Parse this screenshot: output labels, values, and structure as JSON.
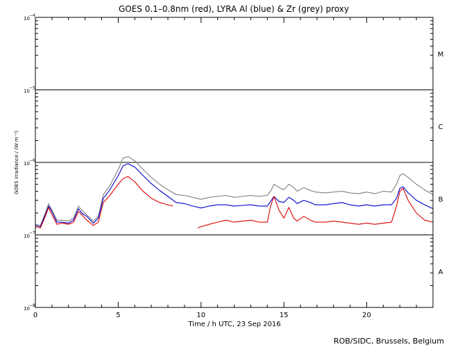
{
  "chart_data": {
    "type": "line",
    "title": "GOES 0.1–0.8nm (red), LYRA Al (blue) & Zr (grey) proxy",
    "xlabel": "Time / h UTC, 23 Sep 2016",
    "ylabel": "GOES irradiance / (W m⁻²)",
    "xlim": [
      0,
      24
    ],
    "ylim_log10": [
      -8,
      -4
    ],
    "x_ticks": [
      0,
      5,
      10,
      15,
      20
    ],
    "x_tick_labels": [
      "0",
      "5",
      "10",
      "15",
      "20"
    ],
    "y_ticks_log10": [
      -8,
      -7,
      -6,
      -5,
      -4
    ],
    "y_tick_labels": [
      {
        "base": "10",
        "exp": "−8"
      },
      {
        "base": "10",
        "exp": "−7"
      },
      {
        "base": "10",
        "exp": "−6"
      },
      {
        "base": "10",
        "exp": "−5"
      },
      {
        "base": "10",
        "exp": "−4"
      }
    ],
    "flare_class_lines_log10": [
      -7,
      -6,
      -5
    ],
    "flare_classes": [
      {
        "label": "A",
        "log10": -7.5
      },
      {
        "label": "B",
        "log10": -6.5
      },
      {
        "label": "C",
        "log10": -5.5
      },
      {
        "label": "M",
        "log10": -4.5
      }
    ],
    "series": [
      {
        "name": "LYRA Zr proxy",
        "color": "#808080",
        "x": [
          0,
          0.3,
          0.6,
          0.8,
          1.0,
          1.3,
          1.6,
          2.0,
          2.3,
          2.6,
          2.8,
          3.1,
          3.5,
          3.8,
          4.1,
          4.5,
          5.0,
          5.3,
          5.6,
          6.0,
          6.5,
          7.0,
          7.5,
          8.0,
          8.5,
          9.0,
          9.5,
          10.0,
          10.5,
          11.0,
          11.5,
          12.0,
          12.5,
          13.0,
          13.5,
          14.0,
          14.2,
          14.4,
          14.7,
          15.0,
          15.3,
          15.6,
          15.8,
          16.2,
          16.6,
          16.9,
          17.5,
          18.0,
          18.5,
          19.0,
          19.5,
          20.0,
          20.5,
          21.0,
          21.5,
          21.8,
          22.0,
          22.2,
          22.5,
          23.0,
          23.5,
          24.0
        ],
        "y": [
          1.4e-07,
          1.35e-07,
          2e-07,
          2.7e-07,
          2.2e-07,
          1.6e-07,
          1.6e-07,
          1.55e-07,
          1.7e-07,
          2.5e-07,
          2.2e-07,
          1.9e-07,
          1.55e-07,
          1.8e-07,
          3.6e-07,
          4.8e-07,
          8e-07,
          1.15e-06,
          1.2e-06,
          1.05e-06,
          8e-07,
          6.2e-07,
          5e-07,
          4.2e-07,
          3.6e-07,
          3.5e-07,
          3.3e-07,
          3.1e-07,
          3.3e-07,
          3.4e-07,
          3.5e-07,
          3.3e-07,
          3.4e-07,
          3.5e-07,
          3.4e-07,
          3.5e-07,
          4e-07,
          5e-07,
          4.5e-07,
          4.2e-07,
          5e-07,
          4.5e-07,
          4e-07,
          4.5e-07,
          4.1e-07,
          3.9e-07,
          3.8e-07,
          3.9e-07,
          4e-07,
          3.8e-07,
          3.7e-07,
          3.9e-07,
          3.7e-07,
          4e-07,
          3.9e-07,
          5e-07,
          6.6e-07,
          7e-07,
          6.2e-07,
          5e-07,
          4.2e-07,
          3.6e-07
        ]
      },
      {
        "name": "LYRA Al proxy",
        "color": "#0000cc",
        "x": [
          0,
          0.3,
          0.6,
          0.8,
          1.0,
          1.3,
          1.6,
          2.0,
          2.3,
          2.6,
          2.8,
          3.1,
          3.5,
          3.8,
          4.1,
          4.5,
          5.0,
          5.3,
          5.6,
          6.0,
          6.5,
          7.0,
          7.5,
          8.0,
          8.5,
          9.0,
          9.5,
          10.0,
          10.5,
          11.0,
          11.5,
          12.0,
          12.5,
          13.0,
          13.5,
          14.0,
          14.2,
          14.4,
          14.7,
          15.0,
          15.3,
          15.6,
          15.8,
          16.2,
          16.6,
          16.9,
          17.5,
          18.0,
          18.5,
          19.0,
          19.5,
          20.0,
          20.5,
          21.0,
          21.5,
          21.8,
          22.0,
          22.2,
          22.5,
          23.0,
          23.5,
          24.0
        ],
        "y": [
          1.35e-07,
          1.3e-07,
          1.9e-07,
          2.5e-07,
          2.1e-07,
          1.5e-07,
          1.5e-07,
          1.45e-07,
          1.6e-07,
          2.3e-07,
          2e-07,
          1.8e-07,
          1.45e-07,
          1.7e-07,
          3.2e-07,
          4.2e-07,
          6.6e-07,
          9e-07,
          9.6e-07,
          8.6e-07,
          6.6e-07,
          5.1e-07,
          4.1e-07,
          3.4e-07,
          2.8e-07,
          2.7e-07,
          2.5e-07,
          2.35e-07,
          2.5e-07,
          2.6e-07,
          2.6e-07,
          2.5e-07,
          2.55e-07,
          2.6e-07,
          2.5e-07,
          2.5e-07,
          2.9e-07,
          3.4e-07,
          2.9e-07,
          2.8e-07,
          3.3e-07,
          3e-07,
          2.7e-07,
          3e-07,
          2.8e-07,
          2.6e-07,
          2.6e-07,
          2.7e-07,
          2.8e-07,
          2.6e-07,
          2.5e-07,
          2.6e-07,
          2.5e-07,
          2.6e-07,
          2.6e-07,
          3.2e-07,
          4.4e-07,
          4.6e-07,
          3.8e-07,
          3e-07,
          2.6e-07,
          2.3e-07
        ]
      },
      {
        "name": "GOES 0.1–0.8nm",
        "color": "#dd0000",
        "x": [
          0,
          0.3,
          0.6,
          0.8,
          1.0,
          1.3,
          1.6,
          2.0,
          2.3,
          2.6,
          2.8,
          3.1,
          3.5,
          3.8,
          4.1,
          4.5,
          5.0,
          5.3,
          5.6,
          6.0,
          6.5,
          7.0,
          7.5,
          8.0,
          8.3,
          null,
          9.8,
          10.0,
          10.5,
          11.0,
          11.5,
          12.0,
          12.5,
          13.0,
          13.5,
          14.0,
          14.2,
          14.4,
          14.7,
          15.0,
          15.3,
          15.6,
          15.8,
          16.2,
          16.6,
          16.9,
          17.5,
          18.0,
          18.5,
          19.0,
          19.5,
          20.0,
          20.5,
          21.0,
          21.5,
          21.8,
          22.0,
          22.2,
          22.5,
          23.0,
          23.5,
          24.0
        ],
        "y": [
          1.3e-07,
          1.25e-07,
          1.8e-07,
          2.4e-07,
          1.9e-07,
          1.4e-07,
          1.45e-07,
          1.4e-07,
          1.5e-07,
          2.1e-07,
          1.9e-07,
          1.6e-07,
          1.35e-07,
          1.5e-07,
          2.8e-07,
          3.5e-07,
          5e-07,
          6e-07,
          6.4e-07,
          5.4e-07,
          4e-07,
          3.2e-07,
          2.8e-07,
          2.6e-07,
          2.5e-07,
          null,
          1.25e-07,
          1.3e-07,
          1.4e-07,
          1.5e-07,
          1.6e-07,
          1.5e-07,
          1.55e-07,
          1.6e-07,
          1.5e-07,
          1.5e-07,
          2.5e-07,
          3.4e-07,
          2.2e-07,
          1.7e-07,
          2.4e-07,
          1.7e-07,
          1.55e-07,
          1.8e-07,
          1.6e-07,
          1.5e-07,
          1.5e-07,
          1.55e-07,
          1.5e-07,
          1.45e-07,
          1.4e-07,
          1.45e-07,
          1.4e-07,
          1.45e-07,
          1.5e-07,
          2.5e-07,
          4e-07,
          4.4e-07,
          3e-07,
          2e-07,
          1.6e-07,
          1.5e-07
        ]
      }
    ],
    "credit": "ROB/SIDC, Brussels, Belgium"
  }
}
